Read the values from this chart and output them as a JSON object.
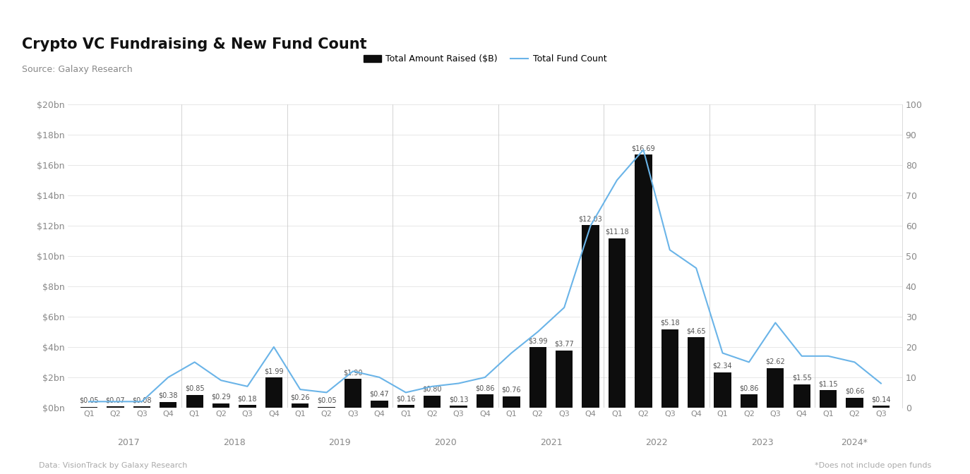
{
  "title": "Crypto VC Fundraising & New Fund Count",
  "source": "Source: Galaxy Research",
  "footer_left": "Data: VisionTrack by Galaxy Research",
  "footer_right": "*Does not include open funds",
  "bar_label": "Total Amount Raised ($B)",
  "line_label": "Total Fund Count",
  "bar_color": "#0d0d0d",
  "line_color": "#6ab4e8",
  "background_color": "#ffffff",
  "quarter_labels": [
    "Q1",
    "Q2",
    "Q3",
    "Q4",
    "Q1",
    "Q2",
    "Q3",
    "Q4",
    "Q1",
    "Q2",
    "Q3",
    "Q4",
    "Q1",
    "Q2",
    "Q3",
    "Q4",
    "Q1",
    "Q2",
    "Q3",
    "Q4",
    "Q1",
    "Q2",
    "Q3",
    "Q4",
    "Q1",
    "Q2",
    "Q3",
    "Q4",
    "Q1",
    "Q2",
    "Q3"
  ],
  "year_labels": [
    "2017",
    "2018",
    "2019",
    "2020",
    "2021",
    "2022",
    "2023",
    "2024*"
  ],
  "year_centers": [
    1.5,
    5.5,
    9.5,
    13.5,
    17.5,
    21.5,
    25.5,
    29.0
  ],
  "year_boundaries": [
    3.5,
    7.5,
    11.5,
    15.5,
    19.5,
    23.5,
    27.5
  ],
  "amounts": [
    0.05,
    0.07,
    0.08,
    0.38,
    0.85,
    0.29,
    0.18,
    1.99,
    0.26,
    0.05,
    1.9,
    0.47,
    0.16,
    0.8,
    0.13,
    0.86,
    0.76,
    3.99,
    3.77,
    12.03,
    11.18,
    16.69,
    5.18,
    4.65,
    2.34,
    0.86,
    2.62,
    1.55,
    1.15,
    0.66,
    0.14
  ],
  "fund_counts": [
    2,
    2,
    2,
    10,
    15,
    9,
    7,
    20,
    6,
    5,
    12,
    10,
    5,
    7,
    8,
    10,
    18,
    25,
    33,
    60,
    75,
    85,
    52,
    46,
    18,
    15,
    28,
    17,
    17,
    15,
    8
  ],
  "amount_labels": [
    "$0.05",
    "$0.07",
    "$0.08",
    "$0.38",
    "$0.85",
    "$0.29",
    "$0.18",
    "$1.99",
    "$0.26",
    "$0.05",
    "$1.90",
    "$0.47",
    "$0.16",
    "$0.80",
    "$0.13",
    "$0.86",
    "$0.76",
    "$3.99",
    "$3.77",
    "$12.03",
    "$11.18",
    "$16.69",
    "$5.18",
    "$4.65",
    "$2.34",
    "$0.86",
    "$2.62",
    "$1.55",
    "$1.15",
    "$0.66",
    "$0.14"
  ],
  "ylim_left": [
    0,
    20
  ],
  "ylim_right": [
    0,
    100
  ],
  "yticks_left": [
    0,
    2,
    4,
    6,
    8,
    10,
    12,
    14,
    16,
    18,
    20
  ],
  "ytick_labels_left": [
    "$0bn",
    "$2bn",
    "$4bn",
    "$6bn",
    "$8bn",
    "$10bn",
    "$12bn",
    "$14bn",
    "$16bn",
    "$18bn",
    "$20bn"
  ],
  "yticks_right": [
    0,
    10,
    20,
    30,
    40,
    50,
    60,
    70,
    80,
    90,
    100
  ]
}
